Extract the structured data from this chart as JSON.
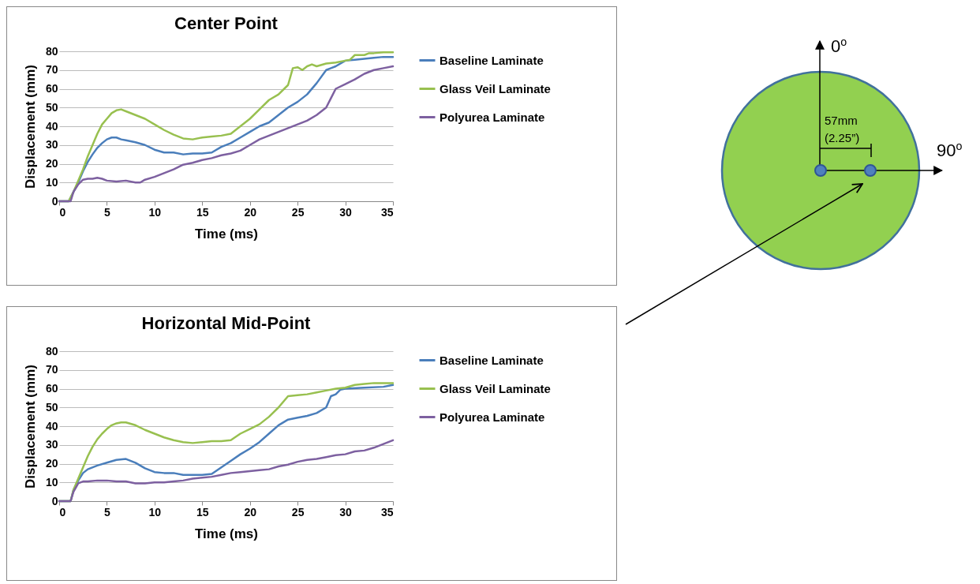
{
  "chart_data": [
    {
      "type": "line",
      "title": "Center Point",
      "xlabel": "Time (ms)",
      "ylabel": "Displacement (mm)",
      "xlim": [
        0,
        35
      ],
      "xticks": [
        0,
        5,
        10,
        15,
        20,
        25,
        30,
        35
      ],
      "ylim": [
        0,
        80
      ],
      "yticks": [
        0,
        10,
        20,
        30,
        40,
        50,
        60,
        70,
        80
      ],
      "grid": "y",
      "legend": "right",
      "marker": "none",
      "line_style": "solid",
      "series": [
        {
          "name": "Baseline Laminate",
          "color": "#4a7ebb",
          "x": [
            0,
            1,
            1.5,
            2,
            2.5,
            3,
            3.5,
            4,
            4.5,
            5,
            5.5,
            6,
            6.5,
            7,
            8,
            9,
            10,
            11,
            12,
            13,
            14,
            15,
            16,
            17,
            18,
            19,
            20,
            21,
            22,
            23,
            24,
            25,
            26,
            27,
            28,
            28.5,
            29,
            30,
            31,
            32,
            33,
            34,
            35
          ],
          "values": [
            0,
            0,
            5,
            10,
            16,
            21,
            25,
            28.5,
            31,
            33,
            34,
            34,
            33,
            32.5,
            31.5,
            30,
            27.5,
            26,
            26,
            25,
            25.5,
            25.5,
            26,
            29,
            31,
            34,
            37,
            40,
            42,
            46,
            50,
            53,
            57,
            63,
            70,
            71,
            72,
            75,
            75.5,
            76,
            76.5,
            77,
            77
          ]
        },
        {
          "name": "Glass Veil Laminate",
          "color": "#98c04f",
          "x": [
            0,
            1,
            1.5,
            2,
            2.5,
            3,
            3.5,
            4,
            4.5,
            5,
            5.5,
            6,
            6.5,
            7,
            8,
            9,
            10,
            11,
            12,
            13,
            14,
            15,
            16,
            17,
            18,
            19,
            20,
            21,
            22,
            23,
            24,
            24.5,
            25,
            25.5,
            26,
            26.5,
            27,
            28,
            29,
            30,
            30.5,
            31,
            32,
            32.5,
            33,
            34,
            35
          ],
          "values": [
            0,
            0,
            5,
            11,
            17,
            24,
            30,
            36,
            41,
            44,
            47,
            48.5,
            49,
            48,
            46,
            44,
            41,
            38,
            35.5,
            33.5,
            33,
            34,
            34.5,
            35,
            36,
            40,
            44,
            49,
            54,
            57,
            62,
            71,
            71.5,
            70,
            72,
            73,
            72,
            73.5,
            74,
            75,
            75.5,
            78,
            78,
            79,
            79,
            79.5,
            79.5
          ]
        },
        {
          "name": "Polyurea Laminate",
          "color": "#7d60a0",
          "x": [
            0,
            1.2,
            1.5,
            2,
            2.5,
            3,
            3.5,
            4,
            4.5,
            5,
            6,
            7,
            8,
            8.5,
            9,
            10,
            11,
            12,
            13,
            14,
            15,
            16,
            17,
            18,
            19,
            20,
            21,
            22,
            23,
            24,
            25,
            26,
            27,
            28,
            28.5,
            29,
            30,
            31,
            32,
            33,
            34,
            35
          ],
          "values": [
            0,
            0,
            5,
            9,
            11.5,
            12,
            12,
            12.5,
            12,
            11,
            10.5,
            11,
            10,
            10,
            11.5,
            13,
            15,
            17,
            19.5,
            20.5,
            22,
            23,
            24.5,
            25.5,
            27,
            30,
            33,
            35,
            37,
            39,
            41,
            43,
            46,
            50,
            55,
            60,
            62.5,
            65,
            68,
            70,
            71,
            72
          ]
        }
      ]
    },
    {
      "type": "line",
      "title": "Horizontal Mid-Point",
      "xlabel": "Time (ms)",
      "ylabel": "Displacement (mm)",
      "xlim": [
        0,
        35
      ],
      "xticks": [
        0,
        5,
        10,
        15,
        20,
        25,
        30,
        35
      ],
      "ylim": [
        0,
        80
      ],
      "yticks": [
        0,
        10,
        20,
        30,
        40,
        50,
        60,
        70,
        80
      ],
      "grid": "y",
      "legend": "right",
      "marker": "none",
      "line_style": "solid",
      "series": [
        {
          "name": "Baseline Laminate",
          "color": "#4a7ebb",
          "x": [
            0,
            1.2,
            1.5,
            2,
            2.5,
            3,
            4,
            5,
            6,
            7,
            8,
            9,
            10,
            11,
            12,
            13,
            14,
            15,
            16,
            17,
            18,
            19,
            20,
            21,
            22,
            23,
            24,
            25,
            26,
            27,
            28,
            28.5,
            29,
            29.5,
            30,
            32,
            34,
            35
          ],
          "values": [
            0,
            0,
            6,
            11,
            15,
            17,
            19,
            20.5,
            22,
            22.5,
            20.5,
            17.5,
            15.5,
            15,
            15,
            14,
            14,
            14,
            14.5,
            18,
            21.5,
            25,
            28,
            31.5,
            36,
            40.5,
            43.5,
            44.5,
            45.5,
            47,
            50,
            56,
            57,
            59.5,
            60,
            60.5,
            61,
            62
          ]
        },
        {
          "name": "Glass Veil Laminate",
          "color": "#98c04f",
          "x": [
            0,
            1.2,
            1.5,
            2,
            2.5,
            3,
            3.5,
            4,
            4.5,
            5,
            5.5,
            6,
            6.5,
            7,
            8,
            9,
            10,
            11,
            12,
            13,
            14,
            15,
            16,
            17,
            18,
            19,
            20,
            21,
            22,
            23,
            24,
            25,
            26,
            27,
            28,
            29,
            30,
            31,
            32,
            33,
            34,
            35
          ],
          "values": [
            0,
            0,
            6,
            12,
            18,
            24,
            29,
            33,
            36,
            38.5,
            40.5,
            41.5,
            42,
            42,
            40.5,
            38,
            36,
            34,
            32.5,
            31.5,
            31,
            31.5,
            32,
            32,
            32.5,
            36,
            38.5,
            41,
            45,
            50,
            56,
            56.5,
            57,
            58,
            59,
            60,
            60.5,
            62,
            62.5,
            63,
            63,
            63
          ]
        },
        {
          "name": "Polyurea Laminate",
          "color": "#7d60a0",
          "x": [
            0,
            1.2,
            1.5,
            2,
            2.5,
            3,
            4,
            5,
            6,
            7,
            8,
            9,
            10,
            11,
            12,
            13,
            14,
            15,
            16,
            17,
            18,
            19,
            20,
            21,
            22,
            23,
            24,
            25,
            26,
            27,
            28,
            29,
            30,
            31,
            32,
            33,
            34,
            35
          ],
          "values": [
            0,
            0,
            5,
            9.5,
            10.5,
            10.5,
            11,
            11,
            10.5,
            10.5,
            9.5,
            9.5,
            10,
            10,
            10.5,
            11,
            12,
            12.5,
            13,
            14,
            15,
            15.5,
            16,
            16.5,
            17,
            18.5,
            19.5,
            21,
            22,
            22.5,
            23.5,
            24.5,
            25,
            26.5,
            27,
            28.5,
            30.5,
            32.5
          ]
        }
      ]
    },
    {
      "type": "other",
      "annotations": [
        "0$^{o}$",
        "90$^{o}$",
        "57mm",
        "(2.25”)"
      ]
    }
  ]
}
